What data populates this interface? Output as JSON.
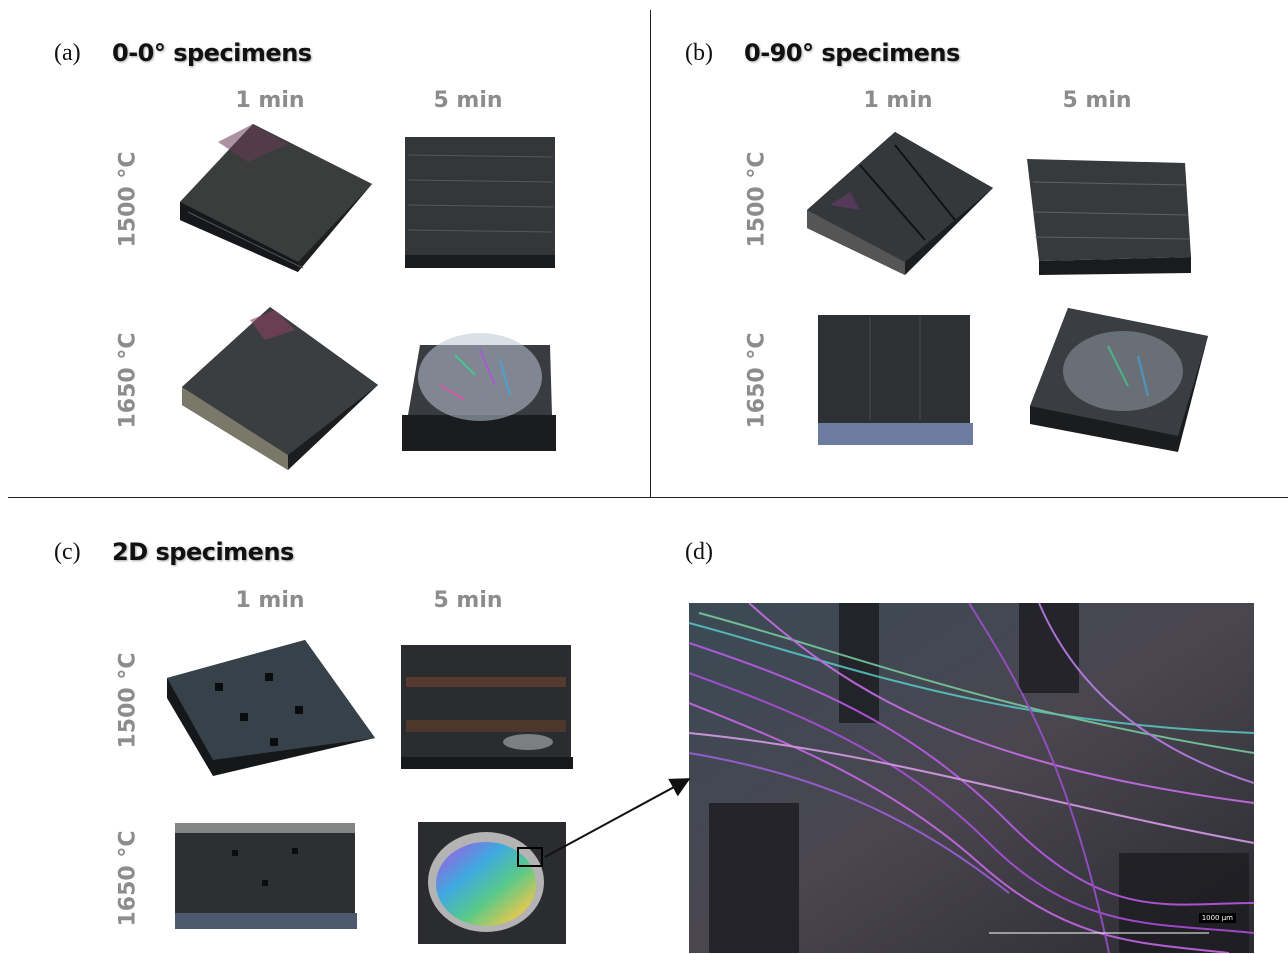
{
  "panels": {
    "a": {
      "letter": "(a)",
      "title": "0-0° specimens",
      "col1": "1 min",
      "col2": "5 min",
      "row1": "1500 °C",
      "row2": "1650 °C"
    },
    "b": {
      "letter": "(b)",
      "title": "0-90° specimens",
      "col1": "1 min",
      "col2": "5 min",
      "row1": "1500 °C",
      "row2": "1650 °C"
    },
    "c": {
      "letter": "(c)",
      "title": "2D specimens",
      "col1": "1 min",
      "col2": "5 min",
      "row1": "1500 °C",
      "row2": "1650 °C"
    },
    "d": {
      "letter": "(d)",
      "scale_label": "1000 µm"
    }
  },
  "colors": {
    "specimen_dark": "#2e3133",
    "specimen_edge": "#1b1c1e",
    "label_gray": "#8c8c8c",
    "iridescent_purple": "#b04fe0",
    "iridescent_green": "#58c98a"
  }
}
